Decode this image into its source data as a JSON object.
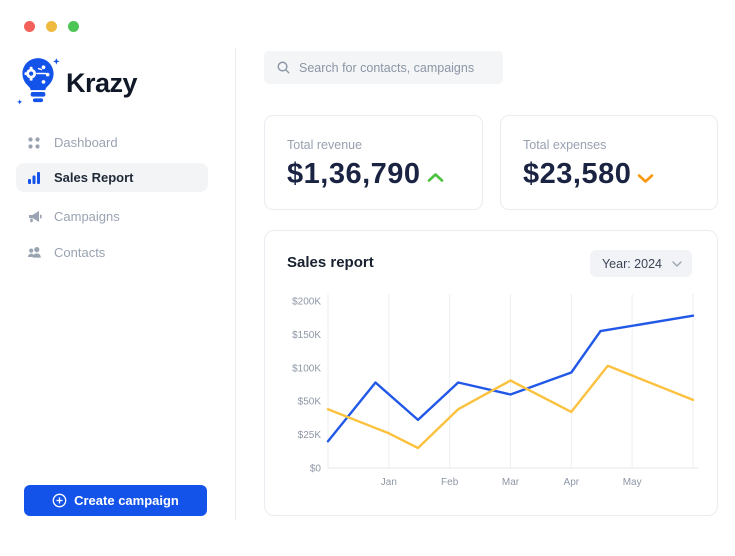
{
  "window": {
    "controls": [
      {
        "name": "close",
        "color": "#f4615b"
      },
      {
        "name": "minimize",
        "color": "#f0ba41"
      },
      {
        "name": "zoom",
        "color": "#4dc555"
      }
    ]
  },
  "brand": {
    "name": "Krazy",
    "logo_icon": "lightbulb-circuit-icon",
    "accent_color": "#1453ea"
  },
  "sidebar": {
    "items": [
      {
        "label": "Dashboard",
        "icon": "grid-dots-icon",
        "active": false
      },
      {
        "label": "Sales Report",
        "icon": "bar-chart-icon",
        "active": true
      },
      {
        "label": "Campaigns",
        "icon": "megaphone-icon",
        "active": false
      },
      {
        "label": "Contacts",
        "icon": "people-icon",
        "active": false
      }
    ],
    "create_button": {
      "label": "Create campaign",
      "icon": "plus-circle-icon",
      "color": "#1453ea"
    }
  },
  "search": {
    "placeholder": "Search for contacts, campaigns",
    "icon": "search-icon"
  },
  "stats": [
    {
      "label": "Total revenue",
      "value": "$1,36,790",
      "trend": "up",
      "trend_color": "#4cc13f"
    },
    {
      "label": "Total expenses",
      "value": "$23,580",
      "trend": "down",
      "trend_color": "#f8980f"
    }
  ],
  "sales_report": {
    "title": "Sales report",
    "year_filter_value": "Year: 2024"
  },
  "chart_data": {
    "type": "line",
    "title": "Sales report",
    "unit": "USD",
    "y_ticks": [
      "$0",
      "$25K",
      "$50K",
      "$100K",
      "$150K",
      "$200K"
    ],
    "y_tick_values": [
      0,
      25,
      50,
      100,
      150,
      200
    ],
    "y_scale_note": "ticks equally spaced (non-linear value scale)",
    "x_gridline_labels": [
      "",
      "Jan",
      "Feb",
      "Mar",
      "Apr",
      "May",
      ""
    ],
    "grid": "vertical-only",
    "legend": "none",
    "series": [
      {
        "name": "blue",
        "color": "#2158e8",
        "points": [
          {
            "x": 0,
            "y": 20
          },
          {
            "x": 0.78,
            "y": 78
          },
          {
            "x": 1.48,
            "y": 36
          },
          {
            "x": 2.14,
            "y": 78
          },
          {
            "x": 3,
            "y": 60
          },
          {
            "x": 4,
            "y": 93
          },
          {
            "x": 4.48,
            "y": 155
          },
          {
            "x": 6,
            "y": 178
          }
        ]
      },
      {
        "name": "yellow",
        "color": "#fbc240",
        "points": [
          {
            "x": 0,
            "y": 44
          },
          {
            "x": 1,
            "y": 26
          },
          {
            "x": 1.48,
            "y": 15
          },
          {
            "x": 2.14,
            "y": 44
          },
          {
            "x": 3,
            "y": 81
          },
          {
            "x": 4,
            "y": 42
          },
          {
            "x": 4.6,
            "y": 103
          },
          {
            "x": 6,
            "y": 52
          }
        ]
      }
    ]
  }
}
